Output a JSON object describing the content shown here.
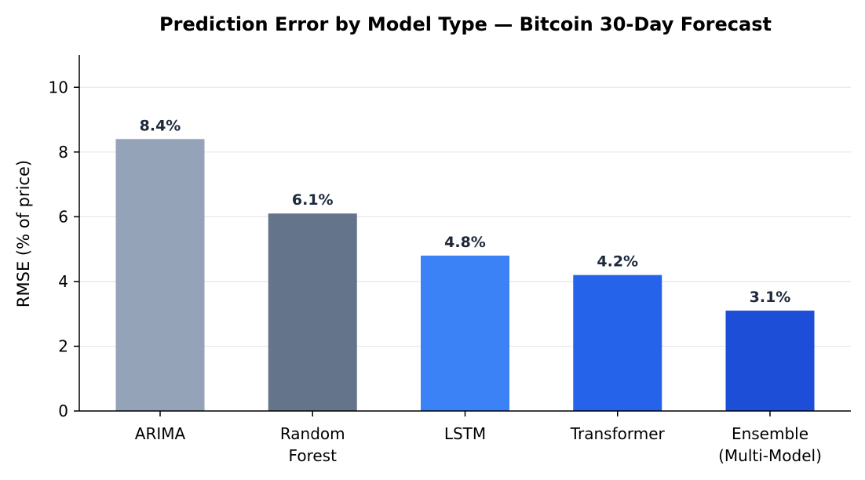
{
  "chart_data": {
    "type": "bar",
    "title": "Prediction Error by Model Type — Bitcoin 30-Day Forecast",
    "ylabel": "RMSE (% of price)",
    "xlabel": "",
    "categories": [
      [
        "ARIMA"
      ],
      [
        "Random",
        "Forest"
      ],
      [
        "LSTM"
      ],
      [
        "Transformer"
      ],
      [
        "Ensemble",
        "(Multi-Model)"
      ]
    ],
    "values": [
      8.4,
      6.1,
      4.8,
      4.2,
      3.1
    ],
    "data_labels": [
      "8.4%",
      "6.1%",
      "4.8%",
      "4.2%",
      "3.1%"
    ],
    "bar_colors": [
      "#94a3b8",
      "#64748b",
      "#3b82f6",
      "#2563eb",
      "#1d4ed8"
    ],
    "ylim": [
      0,
      11
    ],
    "yticks": [
      0,
      2,
      4,
      6,
      8,
      10
    ],
    "grid": "horizontal",
    "legend": "none"
  }
}
